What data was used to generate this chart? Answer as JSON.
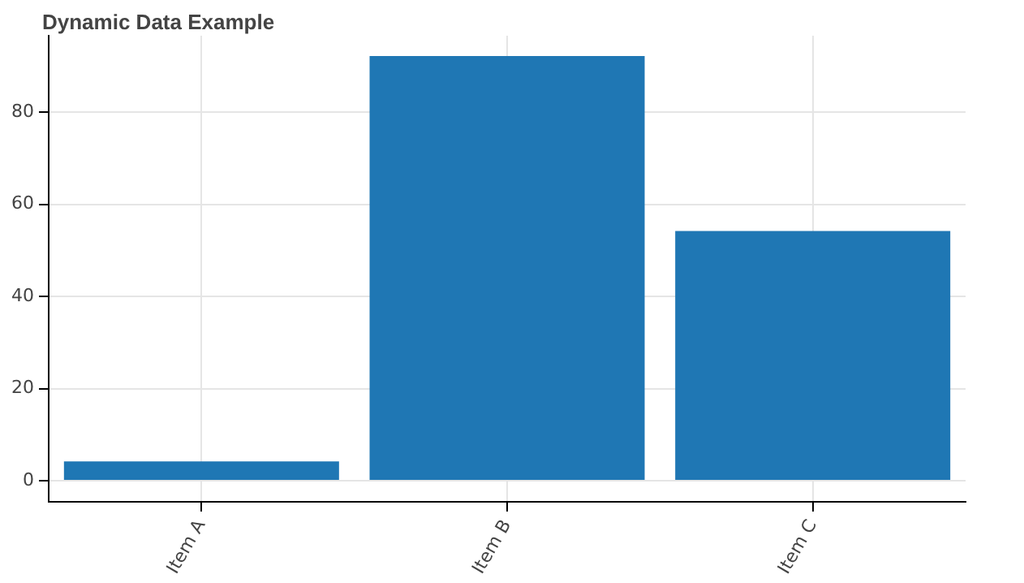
{
  "chart_data": {
    "type": "bar",
    "title": "Dynamic Data Example",
    "categories": [
      "Item A",
      "Item B",
      "Item C"
    ],
    "series": [
      {
        "color": "#1f77b4",
        "values": [
          4.2,
          92.2,
          54.2
        ]
      }
    ],
    "ylim": [
      -4.6,
      96.6
    ],
    "yticks": [
      0,
      20,
      40,
      60,
      80
    ],
    "grid": true,
    "legend": false
  }
}
